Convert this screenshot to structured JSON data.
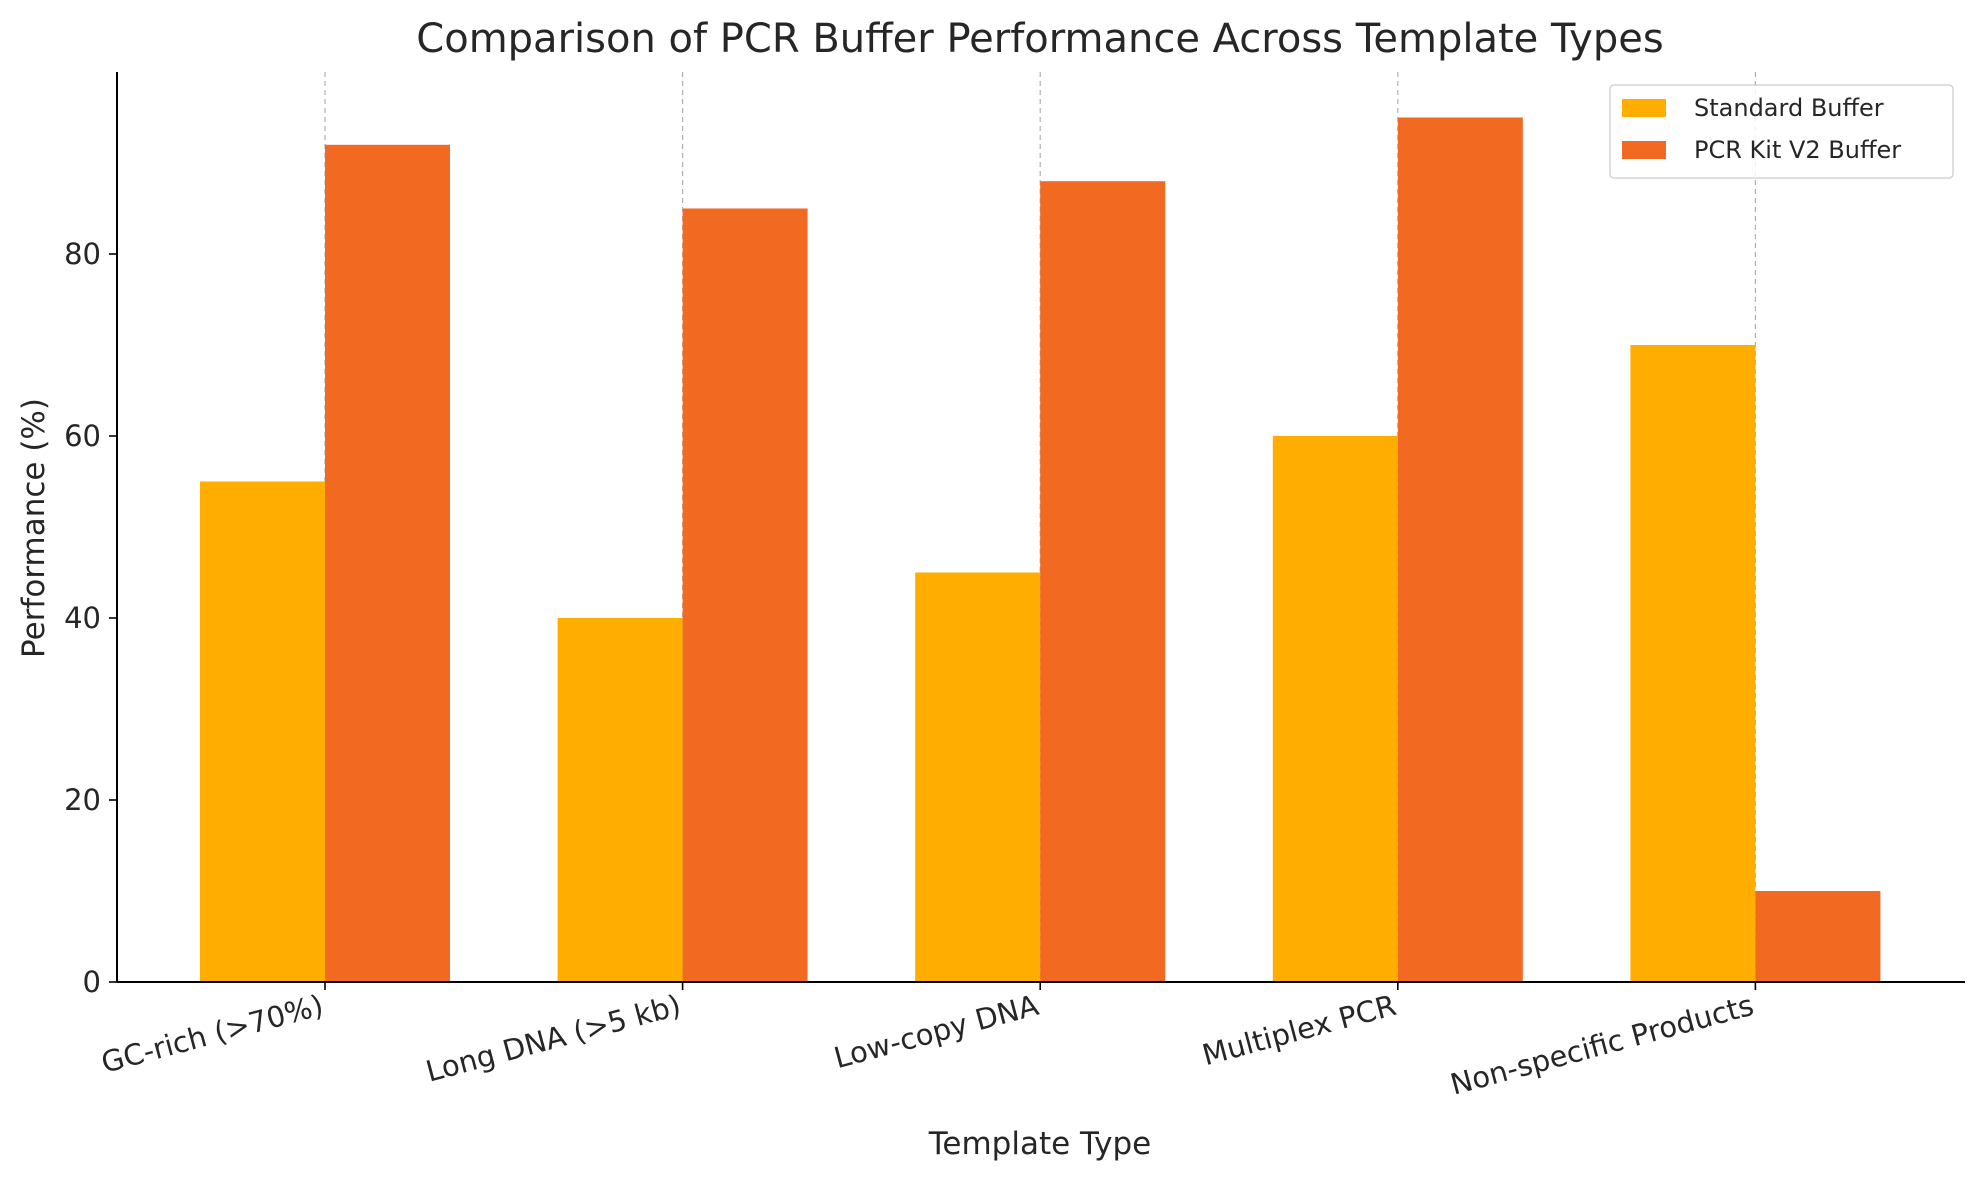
{
  "chart_data": {
    "type": "bar",
    "title": "Comparison of PCR Buffer Performance Across Template Types",
    "xlabel": "Template Type",
    "ylabel": "Performance (%)",
    "categories": [
      "GC-rich (>70%)",
      "Long DNA (>5 kb)",
      "Low-copy DNA",
      "Multiplex PCR",
      "Non-specific Products"
    ],
    "series": [
      {
        "name": "Standard Buffer",
        "color": "#FFAE00",
        "values": [
          55,
          40,
          45,
          60,
          70
        ]
      },
      {
        "name": "PCR Kit V2 Buffer",
        "color": "#F26921",
        "values": [
          92,
          85,
          88,
          95,
          10
        ]
      }
    ],
    "ylim": [
      0,
      100
    ],
    "yticks": [
      0,
      20,
      40,
      60,
      80
    ],
    "grid": "x-dashed",
    "legend_position": "top-right"
  }
}
